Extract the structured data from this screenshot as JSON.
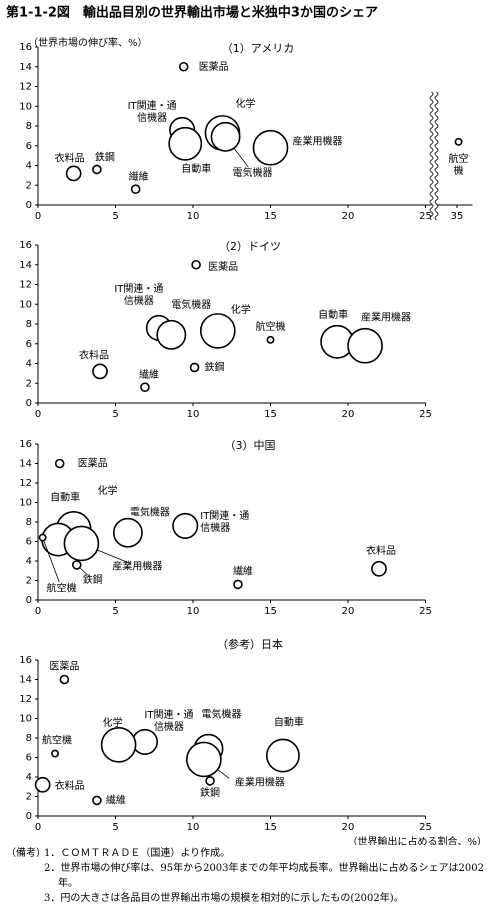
{
  "title": "第1-1-2図　輸出品目別の世界輸出市場と米独中3か国のシェア",
  "notes": {
    "label": "（備考）",
    "items": [
      "1．ＣＯＭＴＲＡＤＥ（国連）より作成。",
      "2．世界市場の伸び率は、95年から2003年までの年平均成長率。世界輸出に占めるシェアは2002年。",
      "3．円の大きさは各品目の世界輸出市場の規模を相対的に示したもの(2002年)。"
    ]
  },
  "chart_data": [
    {
      "type": "bubble",
      "title": "（1）アメリカ",
      "ylabel": "（世界市場の伸び率、%）",
      "categories": [
        "医薬品",
        [
          "IT関連・通",
          "信機器"
        ],
        "化学",
        "電気機器",
        "自動車",
        "産業用機器",
        "衣料品",
        "鉄鋼",
        "繊維",
        [
          "航空",
          "機"
        ]
      ],
      "x": [
        9.4,
        9.3,
        11.9,
        12.1,
        9.5,
        15.0,
        2.3,
        3.8,
        6.3,
        35.1
      ],
      "y": [
        14.0,
        7.6,
        7.3,
        6.9,
        6.2,
        5.8,
        3.2,
        3.6,
        1.6,
        6.4
      ],
      "sizes": [
        16,
        150,
        290,
        200,
        260,
        290,
        50,
        16,
        16,
        10
      ],
      "xlim": [
        0,
        36
      ],
      "xbreak": [
        25,
        34
      ],
      "xticks": [
        0,
        5,
        10,
        15,
        20,
        25,
        35
      ],
      "ylim": [
        0,
        16
      ],
      "yticks": [
        0,
        2,
        4,
        6,
        8,
        10,
        12,
        14,
        16
      ]
    },
    {
      "type": "bubble",
      "title": "（2）ドイツ",
      "categories": [
        "医薬品",
        [
          "IT関連・通",
          "信機器"
        ],
        "化学",
        "電気機器",
        "自動車",
        "産業用機器",
        "衣料品",
        "鉄鋼",
        "繊維",
        "航空機"
      ],
      "x": [
        10.2,
        7.8,
        11.6,
        8.6,
        19.3,
        21.1,
        4.0,
        10.1,
        6.9,
        15.0
      ],
      "y": [
        14.0,
        7.6,
        7.3,
        6.9,
        6.2,
        5.8,
        3.2,
        3.6,
        1.6,
        6.4
      ],
      "sizes": [
        16,
        150,
        290,
        200,
        260,
        290,
        50,
        16,
        16,
        10
      ],
      "xlim": [
        0,
        25
      ],
      "xticks": [
        0,
        5,
        10,
        15,
        20,
        25
      ],
      "ylim": [
        0,
        16
      ],
      "yticks": [
        0,
        2,
        4,
        6,
        8,
        10,
        12,
        14,
        16
      ]
    },
    {
      "type": "bubble",
      "title": "（3）中国",
      "categories": [
        "医薬品",
        [
          "IT関連・通",
          "信機器"
        ],
        "化学",
        "電気機器",
        "自動車",
        "産業用機器",
        "衣料品",
        "鉄鋼",
        "繊維",
        "航空機"
      ],
      "x": [
        1.4,
        9.5,
        2.3,
        5.8,
        1.3,
        2.8,
        22.0,
        2.5,
        12.9,
        0.3
      ],
      "y": [
        14.0,
        7.6,
        7.3,
        6.9,
        6.2,
        5.8,
        3.2,
        3.6,
        1.6,
        6.4
      ],
      "sizes": [
        16,
        150,
        290,
        200,
        260,
        290,
        50,
        16,
        16,
        10
      ],
      "xlim": [
        0,
        25
      ],
      "xticks": [
        0,
        5,
        10,
        15,
        20,
        25
      ],
      "ylim": [
        0,
        16
      ],
      "yticks": [
        0,
        2,
        4,
        6,
        8,
        10,
        12,
        14,
        16
      ]
    },
    {
      "type": "bubble",
      "title": "（参考）日本",
      "xlabel": "（世界輸出に占める割合、%）",
      "categories": [
        "医薬品",
        [
          "IT関連・通",
          "信機器"
        ],
        "化学",
        "電気機器",
        "自動車",
        "産業用機器",
        "衣料品",
        "鉄鋼",
        "繊維",
        "航空機"
      ],
      "x": [
        1.7,
        6.9,
        5.2,
        11.0,
        15.8,
        10.7,
        0.3,
        11.1,
        3.8,
        1.1
      ],
      "y": [
        14.0,
        7.6,
        7.3,
        6.9,
        6.2,
        5.8,
        3.2,
        3.6,
        1.6,
        6.4
      ],
      "sizes": [
        16,
        150,
        290,
        200,
        260,
        290,
        50,
        16,
        16,
        10
      ],
      "xlim": [
        0,
        25
      ],
      "xticks": [
        0,
        5,
        10,
        15,
        20,
        25
      ],
      "ylim": [
        0,
        16
      ],
      "yticks": [
        0,
        2,
        4,
        6,
        8,
        10,
        12,
        14,
        16
      ]
    }
  ]
}
